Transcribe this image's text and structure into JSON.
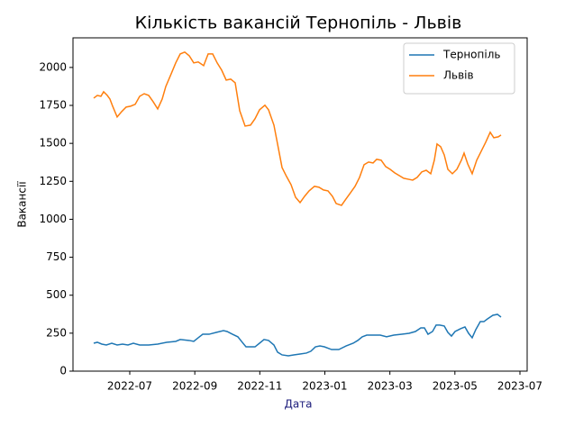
{
  "chart_data": {
    "type": "line",
    "title": "Кількість вакансій Тернопіль - Львів",
    "xlabel": "Дата",
    "xlabel_color": "#1a1a7a",
    "ylabel": "Вакансії",
    "xlim": [
      2022.3545,
      2023.5185
    ],
    "xticks": [
      {
        "value": 2022.5,
        "label": "2022-07"
      },
      {
        "value": 2022.6667,
        "label": "2022-09"
      },
      {
        "value": 2022.8333,
        "label": "2022-11"
      },
      {
        "value": 2023.0,
        "label": "2023-01"
      },
      {
        "value": 2023.1667,
        "label": "2023-03"
      },
      {
        "value": 2023.3333,
        "label": "2023-05"
      },
      {
        "value": 2023.5,
        "label": "2023-07"
      }
    ],
    "ylim": [
      0,
      2195
    ],
    "yticks": [
      0,
      250,
      500,
      750,
      1000,
      1250,
      1500,
      1750,
      2000
    ],
    "grid": false,
    "legend": "upper right",
    "series": [
      {
        "name": "Тернопіль",
        "color": "#1f77b4",
        "x": [
          2022.4076,
          2022.4169,
          2022.4284,
          2022.44,
          2022.4538,
          2022.4677,
          2022.4815,
          2022.4954,
          2022.5092,
          2022.5254,
          2022.5485,
          2022.5716,
          2022.5947,
          2022.6178,
          2022.6293,
          2022.6524,
          2022.664,
          2022.6755,
          2022.6871,
          2022.7032,
          2022.7217,
          2022.7402,
          2022.7494,
          2022.7633,
          2022.7771,
          2022.7864,
          2022.7979,
          2022.821,
          2022.8326,
          2022.8441,
          2022.8557,
          2022.8695,
          2022.8788,
          2022.8903,
          2022.9065,
          2022.9203,
          2022.9365,
          2022.9527,
          2022.9642,
          2022.9758,
          2022.9873,
          2022.9988,
          2023.0173,
          2023.0358,
          2023.0543,
          2023.0727,
          2023.0843,
          2023.0958,
          2023.1074,
          2023.1259,
          2023.142,
          2023.1582,
          2023.1767,
          2023.1975,
          2023.2159,
          2023.2321,
          2023.246,
          2023.2552,
          2023.2644,
          2023.276,
          2023.2852,
          2023.2945,
          2023.306,
          2023.3153,
          2023.3245,
          2023.3337,
          2023.3476,
          2023.3591,
          2023.3684,
          2023.3776,
          2023.3868,
          2023.3984,
          2023.4076,
          2023.4169,
          2023.4307,
          2023.4423,
          2023.4515
        ],
        "values": [
          184,
          190,
          178,
          172,
          184,
          172,
          178,
          172,
          184,
          172,
          172,
          178,
          190,
          196,
          208,
          202,
          196,
          220,
          243,
          243,
          255,
          267,
          261,
          243,
          226,
          196,
          160,
          160,
          184,
          208,
          202,
          172,
          125,
          107,
          101,
          107,
          113,
          119,
          131,
          160,
          166,
          160,
          142,
          142,
          166,
          184,
          202,
          226,
          237,
          237,
          237,
          226,
          237,
          243,
          249,
          261,
          285,
          285,
          243,
          261,
          303,
          303,
          297,
          255,
          231,
          261,
          279,
          291,
          249,
          220,
          273,
          326,
          326,
          344,
          368,
          374,
          356
        ]
      },
      {
        "name": "Львів",
        "color": "#ff7f0e",
        "x": [
          2022.4076,
          2022.4169,
          2022.4261,
          2022.433,
          2022.4423,
          2022.4492,
          2022.4561,
          2022.4677,
          2022.4792,
          2022.4908,
          2022.5023,
          2022.5139,
          2022.5254,
          2022.537,
          2022.5485,
          2022.56,
          2022.5716,
          2022.5831,
          2022.5924,
          2022.6062,
          2022.6178,
          2022.6293,
          2022.6409,
          2022.6524,
          2022.664,
          2022.6755,
          2022.6894,
          2022.7009,
          2022.7125,
          2022.724,
          2022.7356,
          2022.7471,
          2022.7587,
          2022.7702,
          2022.7818,
          2022.7956,
          2022.8095,
          2022.821,
          2022.8326,
          2022.8464,
          2022.8557,
          2022.8695,
          2022.8788,
          2022.8903,
          2022.9018,
          2022.9134,
          2022.9249,
          2022.9365,
          2022.948,
          2022.9596,
          2022.9734,
          2022.985,
          2022.9965,
          2023.0081,
          2023.0196,
          2023.0289,
          2023.0427,
          2023.0543,
          2023.0658,
          2023.0774,
          2023.0889,
          2023.1005,
          2023.112,
          2023.1236,
          2023.1328,
          2023.1443,
          2023.1559,
          2023.1674,
          2023.179,
          2023.1905,
          2023.2021,
          2023.2136,
          2023.2252,
          2023.2367,
          2023.2483,
          2023.2598,
          2023.2714,
          2023.2806,
          2023.2875,
          2023.2968,
          2023.306,
          2023.3153,
          2023.3268,
          2023.3383,
          2023.3499,
          2023.3568,
          2023.3661,
          2023.3776,
          2023.3892,
          2023.4007,
          2023.4122,
          2023.4238,
          2023.433,
          2023.4446,
          2023.4515
        ],
        "values": [
          1798,
          1816,
          1810,
          1840,
          1816,
          1792,
          1745,
          1674,
          1709,
          1739,
          1745,
          1757,
          1810,
          1827,
          1816,
          1774,
          1727,
          1792,
          1875,
          1958,
          2030,
          2089,
          2101,
          2077,
          2030,
          2036,
          2012,
          2089,
          2089,
          2030,
          1982,
          1917,
          1923,
          1899,
          1715,
          1614,
          1620,
          1662,
          1721,
          1751,
          1721,
          1620,
          1496,
          1341,
          1282,
          1228,
          1145,
          1110,
          1151,
          1187,
          1217,
          1211,
          1193,
          1187,
          1151,
          1104,
          1092,
          1134,
          1175,
          1217,
          1276,
          1359,
          1377,
          1371,
          1395,
          1389,
          1347,
          1329,
          1306,
          1288,
          1270,
          1264,
          1258,
          1276,
          1312,
          1323,
          1300,
          1389,
          1496,
          1478,
          1424,
          1329,
          1300,
          1329,
          1389,
          1436,
          1365,
          1300,
          1389,
          1448,
          1507,
          1573,
          1537,
          1543,
          1555
        ]
      }
    ]
  }
}
